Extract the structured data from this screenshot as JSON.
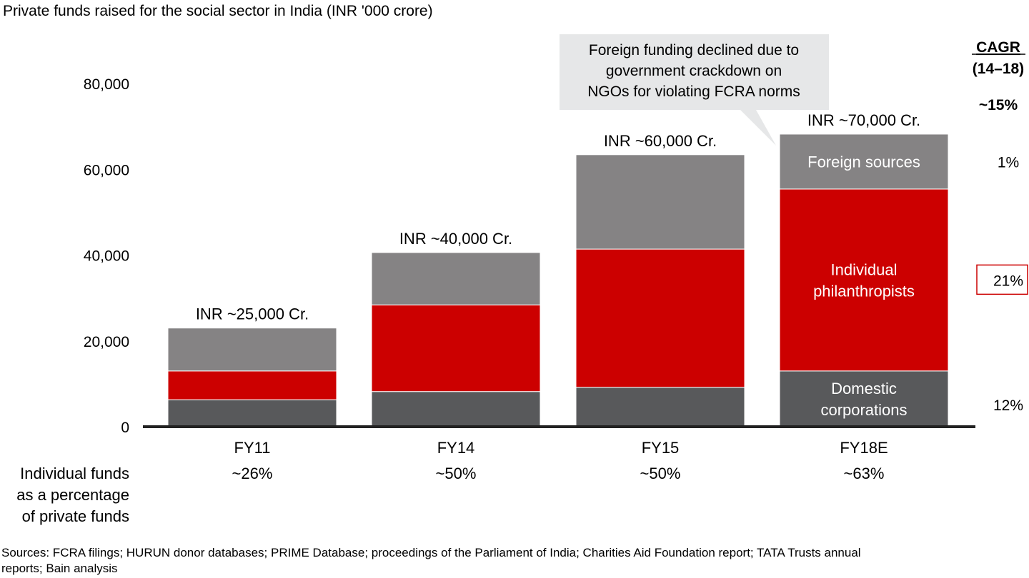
{
  "chart_data": {
    "type": "bar",
    "stacked": true,
    "title": "Private funds raised for the social sector in India (INR '000 crore)",
    "categories": [
      "FY11",
      "FY14",
      "FY15",
      "FY18E"
    ],
    "ylim": [
      0,
      80000
    ],
    "yticks": [
      0,
      20000,
      40000,
      60000,
      80000
    ],
    "ytick_labels": [
      "0",
      "20,000",
      "40,000",
      "60,000",
      "80,000"
    ],
    "grid": false,
    "series": [
      {
        "name": "Domestic corporations",
        "label_lines": [
          "Domestic",
          "corporations"
        ],
        "color": "#58595b",
        "values": [
          6300,
          8200,
          9200,
          13000
        ]
      },
      {
        "name": "Individual philanthropists",
        "label_lines": [
          "Individual",
          "philanthropists"
        ],
        "color": "#cc0000",
        "values": [
          6700,
          20200,
          32200,
          42400
        ]
      },
      {
        "name": "Foreign sources",
        "label_lines": [
          "Foreign sources"
        ],
        "color": "#858384",
        "values": [
          10000,
          12200,
          22000,
          12800
        ]
      }
    ],
    "total_labels": [
      "INR ~25,000 Cr.",
      "INR ~40,000 Cr.",
      "INR ~60,000 Cr.",
      "INR ~70,000 Cr."
    ],
    "cagr": {
      "header": "CAGR",
      "period": "(14–18)",
      "total": "~15%",
      "values": [
        "12%",
        "21%",
        "1%"
      ],
      "highlight_color": "#cc0000"
    },
    "callout": {
      "lines": [
        "Foreign funding declined due to",
        "government crackdown on",
        "NGOs for violating FCRA norms"
      ],
      "color": "#e6e7e8"
    },
    "individual_share": {
      "label_lines": [
        "Individual funds",
        "as a percentage",
        "of private funds"
      ],
      "values": [
        "~26%",
        "~50%",
        "~50%",
        "~63%"
      ]
    }
  },
  "sources": [
    "Sources: FCRA filings; HURUN donor databases; PRIME Database; proceedings of the Parliament of India; Charities Aid Foundation report; TATA Trusts annual",
    "reports; Bain analysis"
  ]
}
